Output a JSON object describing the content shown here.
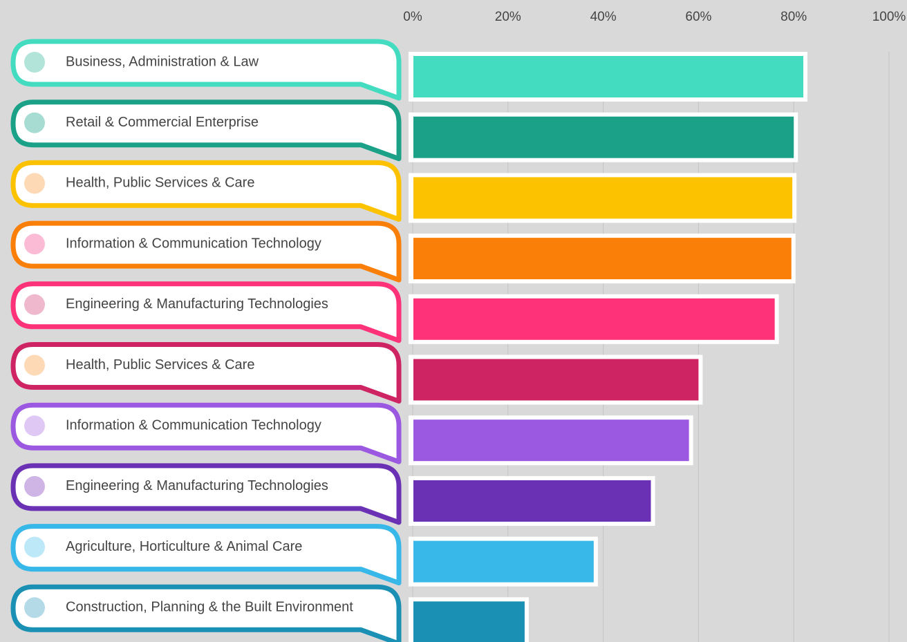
{
  "chart_data": {
    "type": "bar",
    "orientation": "horizontal",
    "categories": [
      "Business, Administration & Law",
      "Retail & Commercial Enterprise",
      "Health, Public Services & Care",
      "Information & Communication Technology",
      "Engineering & Manufacturing Technologies",
      "Health, Public Services & Care",
      "Information & Communication Technology",
      "Engineering & Manufacturing Technologies",
      "Agriculture, Horticulture & Animal Care",
      "Construction, Planning & the Built Environment"
    ],
    "values": [
      82,
      80,
      79.7,
      79.5,
      76,
      60,
      58,
      50,
      38,
      23.5
    ],
    "colors": [
      "#43dcc1",
      "#1aa187",
      "#fcc200",
      "#fa7f08",
      "#fe3278",
      "#cf2463",
      "#9b59e1",
      "#6a31b5",
      "#38b8e8",
      "#1a91b4"
    ],
    "marker_colors": [
      "#b2e4da",
      "#a7dcd3",
      "#fdd9b6",
      "#fcbbd4",
      "#efb8cd",
      "#fdd9b6",
      "#e0c8f5",
      "#cfb5e6",
      "#bde8f8",
      "#b4dae8"
    ],
    "xlim": [
      0,
      100
    ],
    "xticks": [
      {
        "value": 0,
        "label": "0%"
      },
      {
        "value": 20,
        "label": "20%"
      },
      {
        "value": 40,
        "label": "40%"
      },
      {
        "value": 60,
        "label": "60%"
      },
      {
        "value": 80,
        "label": "80%"
      },
      {
        "value": 100,
        "label": "100%"
      }
    ],
    "grid": true
  }
}
